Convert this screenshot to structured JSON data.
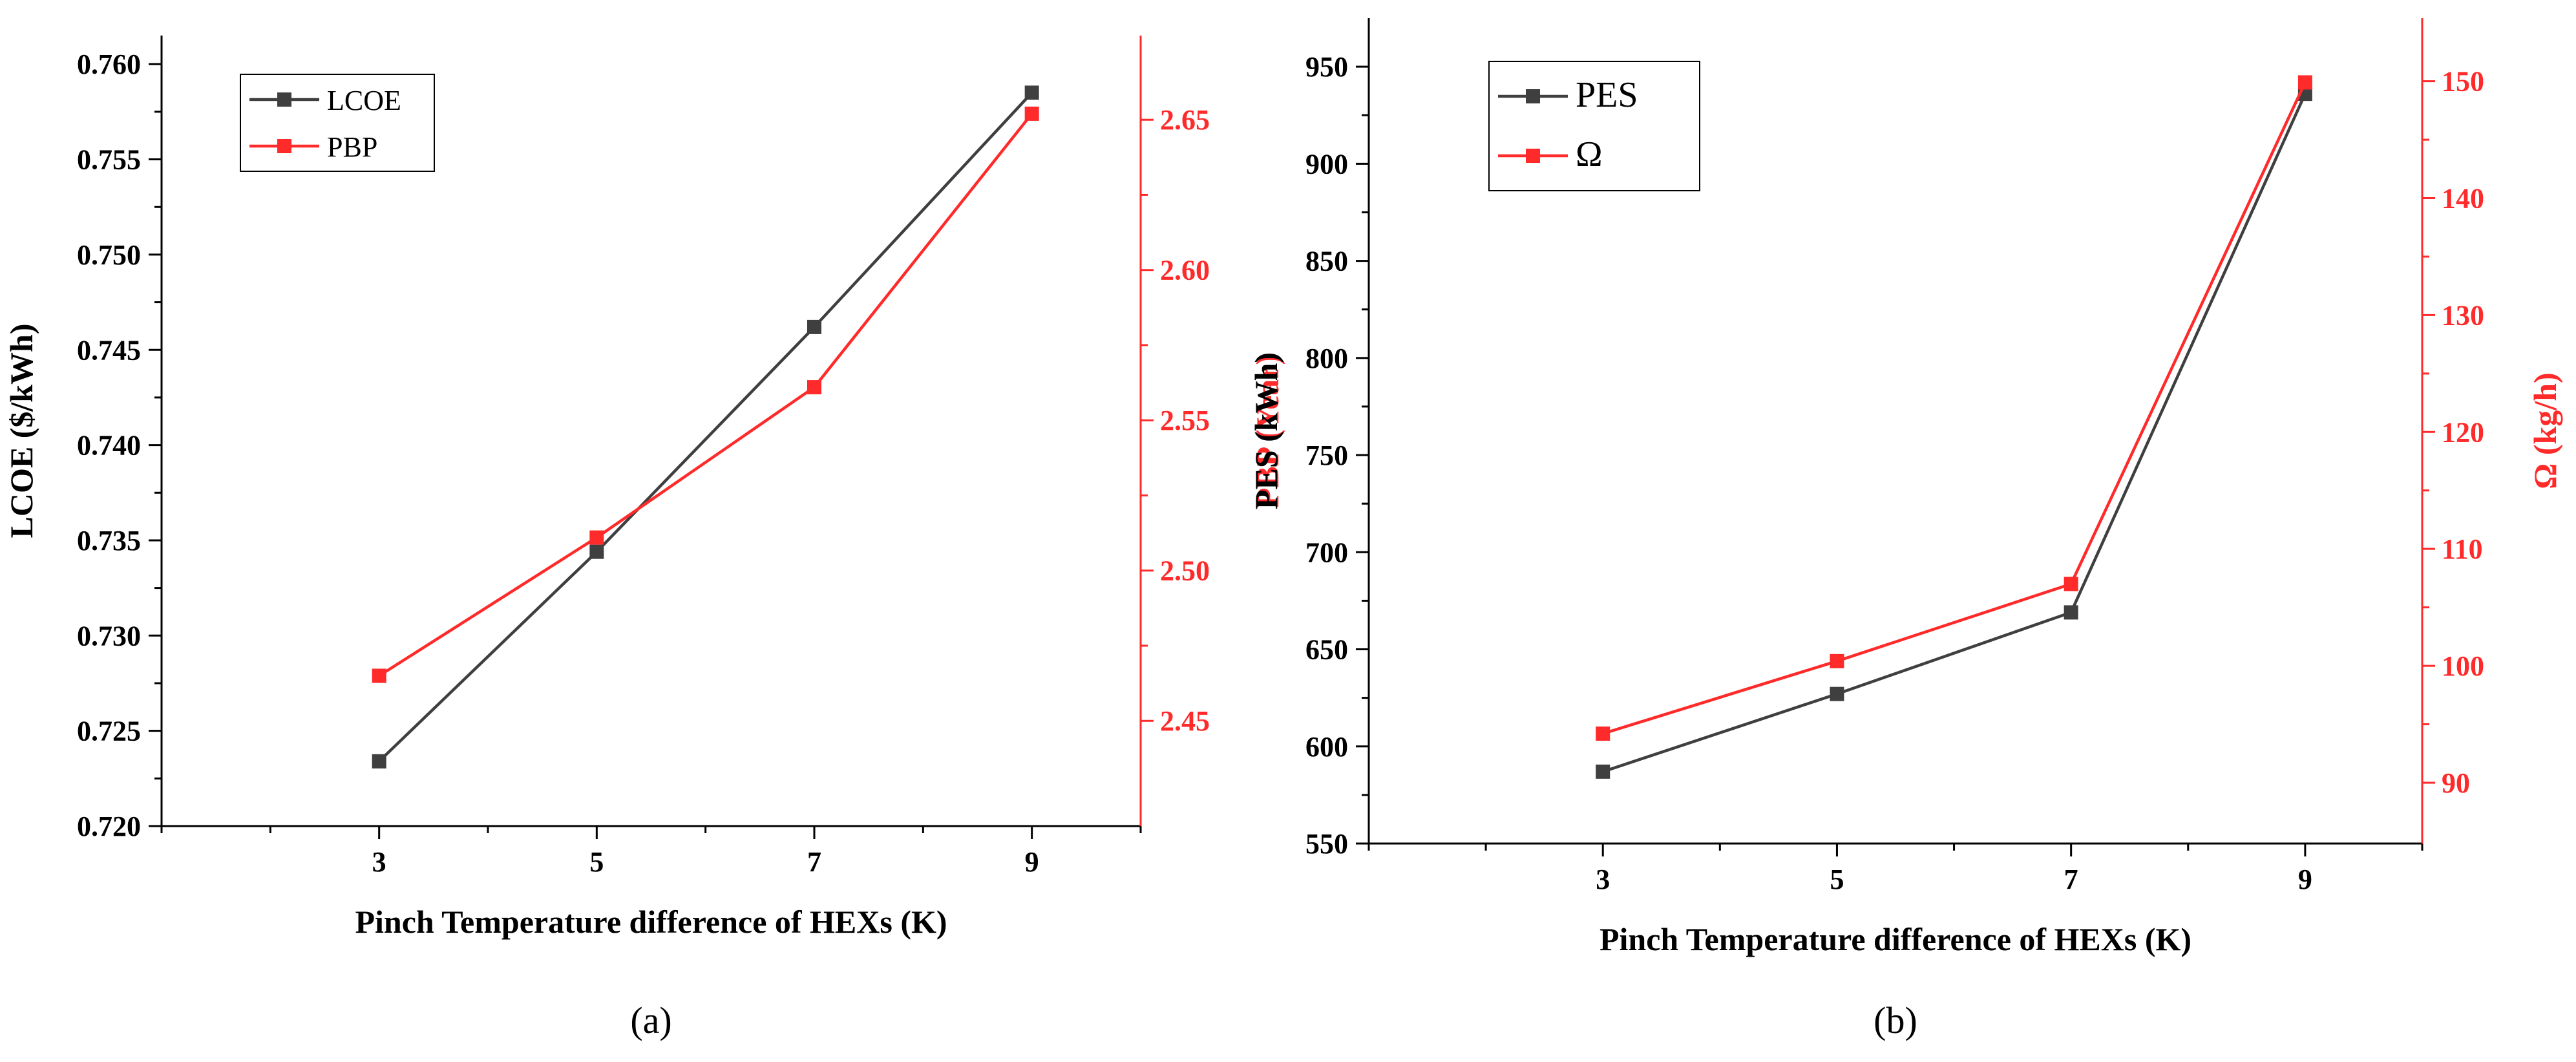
{
  "colors": {
    "black_series": "#3f3f3f",
    "red_series": "#ff2a2a",
    "axis": "#000000"
  },
  "chart_data": [
    {
      "type": "line",
      "panel_label": "(a)",
      "xlabel": "Pinch Temperature difference of HEXs (K)",
      "x": [
        3,
        5,
        7,
        9
      ],
      "x_ticks": [
        "3",
        "5",
        "7",
        "9"
      ],
      "xlim": [
        1,
        10
      ],
      "ylabel_left": "LCOE ($/kWh)",
      "ylim_left": [
        0.72,
        0.7615
      ],
      "y_ticks_left": [
        "0.720",
        "0.725",
        "0.730",
        "0.735",
        "0.740",
        "0.745",
        "0.750",
        "0.755",
        "0.760"
      ],
      "ylabel_right": "PBP (Year)",
      "ylim_right": [
        2.415,
        2.678
      ],
      "y_ticks_right": [
        "2.45",
        "2.50",
        "2.55",
        "2.60",
        "2.65"
      ],
      "series": [
        {
          "name": "LCOE",
          "axis": "left",
          "color": "#3f3f3f",
          "marker": "square",
          "values": [
            0.7234,
            0.7344,
            0.7462,
            0.7585
          ]
        },
        {
          "name": "PBP",
          "axis": "right",
          "color": "#ff2a2a",
          "marker": "square",
          "values": [
            2.465,
            2.511,
            2.561,
            2.652
          ]
        }
      ],
      "legend": {
        "placement": "top-left"
      },
      "grid": false
    },
    {
      "type": "line",
      "panel_label": "(b)",
      "xlabel": "Pinch Temperature difference of HEXs (K)",
      "x": [
        3,
        5,
        7,
        9
      ],
      "x_ticks": [
        "3",
        "5",
        "7",
        "9"
      ],
      "xlim": [
        1,
        10
      ],
      "ylabel_left": "PES (kWh)",
      "ylim_left": [
        550,
        975
      ],
      "y_ticks_left": [
        "550",
        "600",
        "650",
        "700",
        "750",
        "800",
        "850",
        "900",
        "950"
      ],
      "ylabel_right": "Ω (kg/h)",
      "ylim_right": [
        84.8,
        155.4
      ],
      "y_ticks_right": [
        "90",
        "100",
        "110",
        "120",
        "130",
        "140",
        "150"
      ],
      "series": [
        {
          "name": "PES",
          "axis": "left",
          "color": "#3f3f3f",
          "marker": "square",
          "values": [
            587,
            627,
            669,
            936
          ]
        },
        {
          "name": "Ω",
          "axis": "right",
          "color": "#ff2a2a",
          "marker": "square",
          "values": [
            94.2,
            100.4,
            107.0,
            149.9
          ]
        }
      ],
      "legend": {
        "placement": "top-left"
      },
      "grid": false
    }
  ]
}
